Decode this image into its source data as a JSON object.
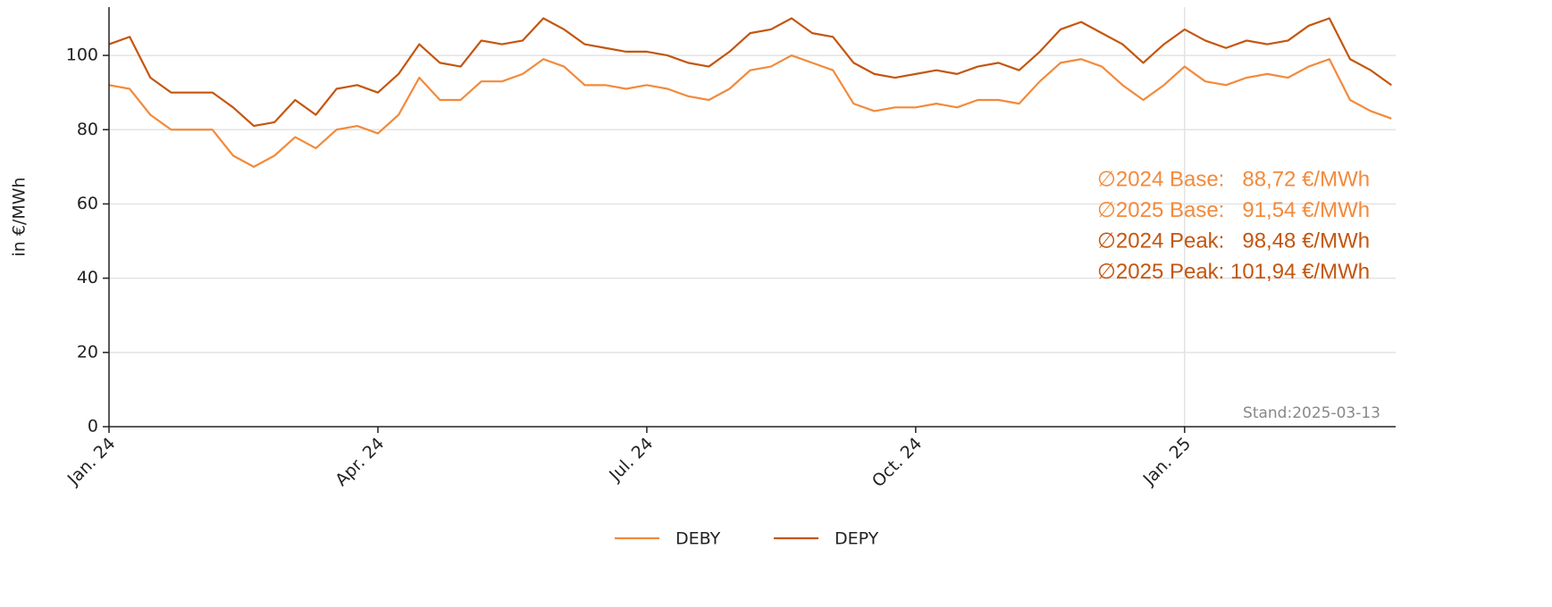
{
  "chart_data": {
    "type": "line",
    "y_label": "in €/MWh",
    "categories": [
      "Jan. 24",
      null,
      null,
      null,
      null,
      null,
      null,
      null,
      null,
      null,
      null,
      null,
      null,
      "Apr. 24",
      null,
      null,
      null,
      null,
      null,
      null,
      null,
      null,
      null,
      null,
      null,
      null,
      "Jul. 24",
      null,
      null,
      null,
      null,
      null,
      null,
      null,
      null,
      null,
      null,
      null,
      null,
      "Oct. 24",
      null,
      null,
      null,
      null,
      null,
      null,
      null,
      null,
      null,
      null,
      null,
      null,
      "Jan. 25",
      null,
      null,
      null,
      null,
      null,
      null,
      null,
      null,
      null,
      null
    ],
    "series": [
      {
        "name": "DEBY",
        "color": "#f28a3c",
        "values": [
          92,
          91,
          84,
          80,
          80,
          80,
          73,
          70,
          73,
          78,
          75,
          80,
          81,
          79,
          84,
          94,
          88,
          88,
          93,
          93,
          95,
          99,
          97,
          92,
          92,
          91,
          92,
          91,
          89,
          88,
          91,
          96,
          97,
          100,
          98,
          96,
          87,
          85,
          86,
          86,
          87,
          86,
          88,
          88,
          87,
          93,
          98,
          99,
          97,
          92,
          88,
          92,
          97,
          93,
          92,
          94,
          95,
          94,
          97,
          99,
          88,
          85,
          83
        ]
      },
      {
        "name": "DEPY",
        "color": "#c4560f",
        "values": [
          103,
          105,
          94,
          90,
          90,
          90,
          86,
          81,
          82,
          88,
          84,
          91,
          92,
          90,
          95,
          103,
          98,
          97,
          104,
          103,
          104,
          110,
          107,
          103,
          102,
          101,
          101,
          100,
          98,
          97,
          101,
          106,
          107,
          110,
          106,
          105,
          98,
          95,
          94,
          95,
          96,
          95,
          97,
          98,
          96,
          101,
          107,
          109,
          106,
          103,
          98,
          103,
          107,
          104,
          102,
          104,
          103,
          104,
          108,
          110,
          99,
          96,
          92
        ]
      }
    ],
    "ylim": [
      0,
      113
    ],
    "yticks": [
      0,
      20,
      40,
      60,
      80,
      100
    ],
    "grid": true,
    "annotations": [
      {
        "text": "∅2024 Base:   88,72 €/MWh",
        "color": "#f28a3c"
      },
      {
        "text": "∅2025 Base:   91,54 €/MWh",
        "color": "#f28a3c"
      },
      {
        "text": "∅2024 Peak:   98,48 €/MWh",
        "color": "#c4560f"
      },
      {
        "text": "∅2025 Peak: 101,94 €/MWh",
        "color": "#c4560f"
      }
    ],
    "footnote": "Stand:2025-03-13"
  }
}
